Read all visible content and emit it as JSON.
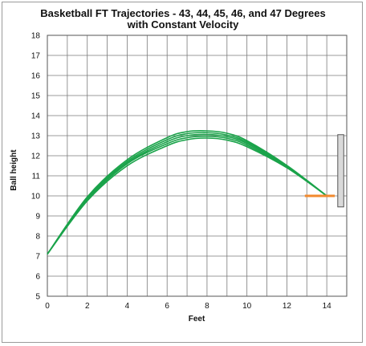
{
  "chart_data": {
    "type": "line",
    "title_line1": "Basketball FT Trajectories - 43, 44, 45, 46, and 47 Degrees",
    "title_line2": "with Constant Velocity",
    "xlabel": "Feet",
    "ylabel": "Ball height",
    "xlim": [
      0,
      15
    ],
    "ylim": [
      5,
      18
    ],
    "x_ticks": [
      0,
      2,
      4,
      6,
      8,
      10,
      12,
      14
    ],
    "y_ticks": [
      5,
      6,
      7,
      8,
      9,
      10,
      11,
      12,
      13,
      14,
      15,
      16,
      17,
      18
    ],
    "grid": true,
    "legend": "none",
    "colors": {
      "trajectory": "#1aa34a",
      "rim": "#f28a2e",
      "backboard_fill": "#d9d9d9",
      "backboard_stroke": "#555555",
      "grid": "#7a7a7a"
    },
    "series": [
      {
        "angle_deg": 43,
        "x": [
          0,
          2,
          4,
          6,
          7,
          8,
          9,
          10,
          12,
          14
        ],
        "y": [
          7.1,
          9.75,
          11.5,
          12.5,
          12.8,
          12.88,
          12.78,
          12.45,
          11.4,
          10.0
        ]
      },
      {
        "angle_deg": 44,
        "x": [
          0,
          2,
          4,
          6,
          7,
          8,
          9,
          10,
          12,
          14
        ],
        "y": [
          7.1,
          9.8,
          11.6,
          12.6,
          12.9,
          12.97,
          12.87,
          12.53,
          11.43,
          10.0
        ]
      },
      {
        "angle_deg": 45,
        "x": [
          0,
          2,
          4,
          6,
          7,
          8,
          9,
          10,
          12,
          14
        ],
        "y": [
          7.1,
          9.85,
          11.65,
          12.7,
          13.0,
          13.06,
          12.95,
          12.61,
          11.46,
          10.0
        ]
      },
      {
        "angle_deg": 46,
        "x": [
          0,
          2,
          4,
          6,
          7,
          8,
          9,
          10,
          12,
          14
        ],
        "y": [
          7.1,
          9.9,
          11.72,
          12.8,
          13.1,
          13.15,
          13.03,
          12.68,
          11.49,
          10.0
        ]
      },
      {
        "angle_deg": 47,
        "x": [
          0,
          2,
          4,
          6,
          7,
          8,
          9,
          10,
          12,
          14
        ],
        "y": [
          7.1,
          9.95,
          11.8,
          12.9,
          13.2,
          13.24,
          13.12,
          12.75,
          11.52,
          10.0
        ]
      }
    ],
    "rim": {
      "x": [
        12.9,
        14.4
      ],
      "y": 10
    },
    "backboard": {
      "x": [
        14.55,
        14.85
      ],
      "y": [
        9.45,
        13.05
      ]
    }
  }
}
